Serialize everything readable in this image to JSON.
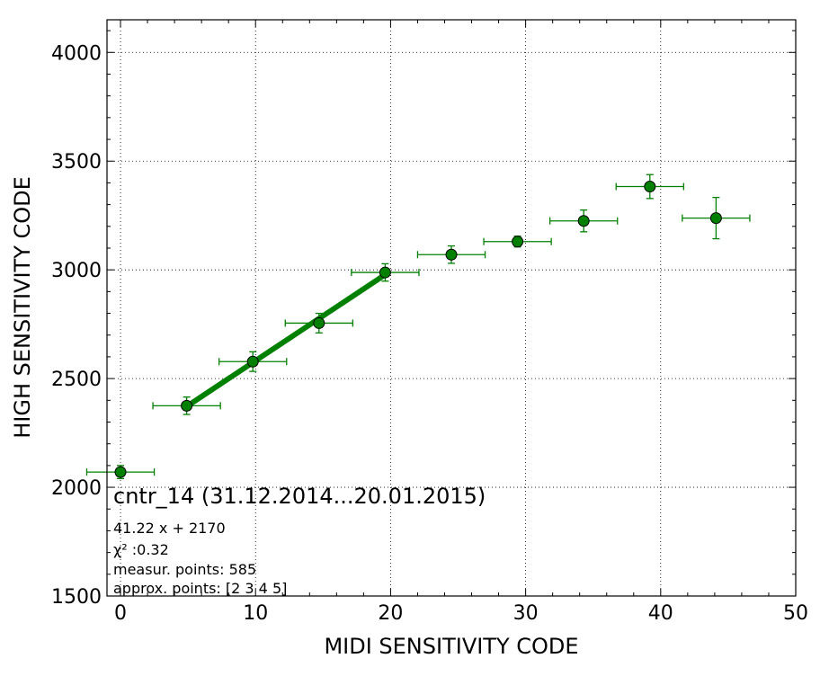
{
  "chart_data": {
    "type": "scatter",
    "title": "cntr_14 (31.12.2014...20.01.2015)",
    "xlabel": "MIDI SENSITIVITY CODE",
    "ylabel": "HIGH SENSITIVITY CODE",
    "xlim": [
      -1,
      50
    ],
    "ylim": [
      1500,
      4150
    ],
    "xticks": [
      0,
      10,
      20,
      30,
      40,
      50
    ],
    "yticks": [
      1500,
      2000,
      2500,
      3000,
      3500,
      4000
    ],
    "grid": true,
    "color": "#008000",
    "points": [
      {
        "x": 0.0,
        "y": 2070,
        "xerr": 2.5,
        "yerr": 30
      },
      {
        "x": 4.9,
        "y": 2375,
        "xerr": 2.5,
        "yerr": 40
      },
      {
        "x": 9.8,
        "y": 2578,
        "xerr": 2.5,
        "yerr": 45
      },
      {
        "x": 14.7,
        "y": 2755,
        "xerr": 2.5,
        "yerr": 45
      },
      {
        "x": 19.6,
        "y": 2988,
        "xerr": 2.5,
        "yerr": 40
      },
      {
        "x": 24.5,
        "y": 3070,
        "xerr": 2.5,
        "yerr": 40
      },
      {
        "x": 29.4,
        "y": 3130,
        "xerr": 2.5,
        "yerr": 25
      },
      {
        "x": 34.3,
        "y": 3225,
        "xerr": 2.5,
        "yerr": 50
      },
      {
        "x": 39.2,
        "y": 3383,
        "xerr": 2.5,
        "yerr": 55
      },
      {
        "x": 44.1,
        "y": 3238,
        "xerr": 2.5,
        "yerr": 95
      }
    ],
    "fit_line": {
      "x_start": 4.9,
      "x_end": 19.6,
      "slope": 41.22,
      "intercept": 2170
    },
    "annotations": [
      {
        "id": "fit_eq",
        "text": "41.22 x + 2170"
      },
      {
        "id": "chi2",
        "text": "χ² :0.32"
      },
      {
        "id": "measur",
        "text": "measur. points: 585"
      },
      {
        "id": "approx",
        "text": "approx. points: [2 3 4 5]"
      }
    ]
  }
}
